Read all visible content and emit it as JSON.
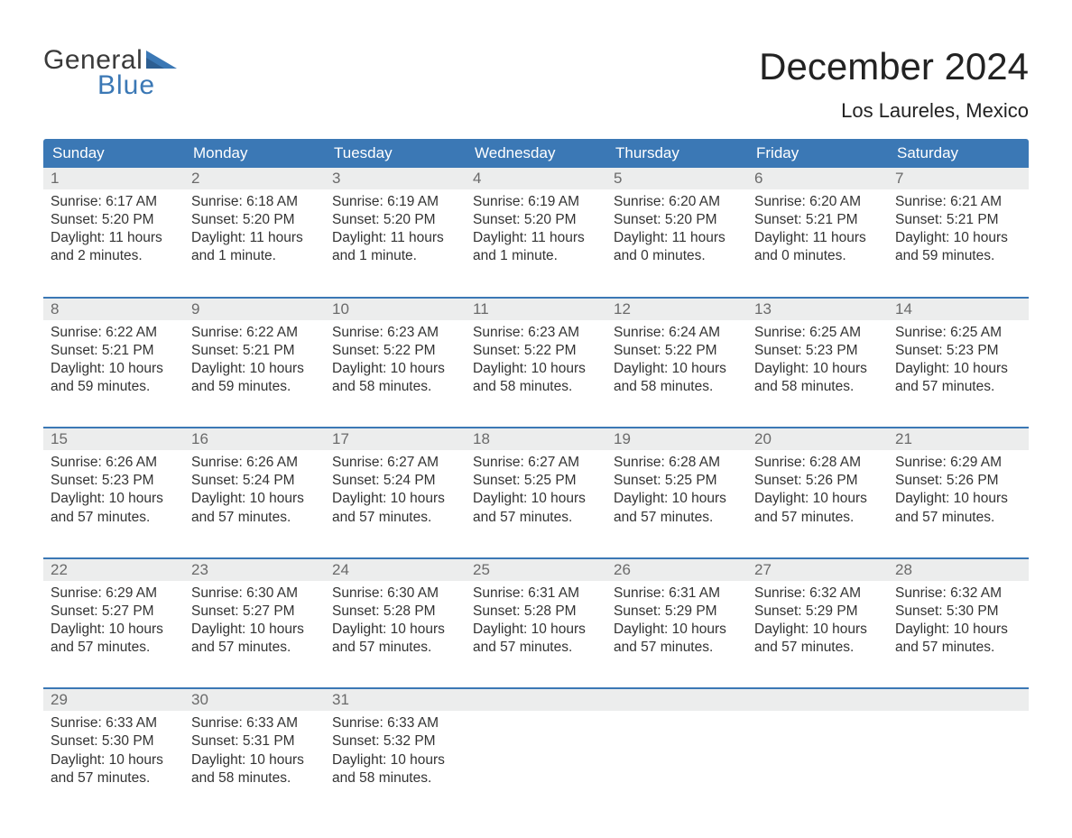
{
  "brand": {
    "word1": "General",
    "word2": "Blue",
    "logo_color": "#3b78b5",
    "text_color": "#3a3a3a"
  },
  "title": "December 2024",
  "location": "Los Laureles, Mexico",
  "colors": {
    "header_bg": "#3b78b5",
    "header_text": "#ffffff",
    "daynum_bg": "#eceded",
    "daynum_text": "#6a6a6a",
    "body_text": "#333333",
    "week_border": "#3b78b5",
    "page_bg": "#ffffff"
  },
  "typography": {
    "title_fontsize": 42,
    "location_fontsize": 22,
    "weekday_fontsize": 17,
    "daynum_fontsize": 17,
    "body_fontsize": 15.5,
    "logo_fontsize": 30
  },
  "weekdays": [
    "Sunday",
    "Monday",
    "Tuesday",
    "Wednesday",
    "Thursday",
    "Friday",
    "Saturday"
  ],
  "labels": {
    "sunrise": "Sunrise:",
    "sunset": "Sunset:",
    "daylight": "Daylight:"
  },
  "weeks": [
    [
      {
        "n": "1",
        "sunrise": "6:17 AM",
        "sunset": "5:20 PM",
        "daylight1": "11 hours",
        "daylight2": "and 2 minutes."
      },
      {
        "n": "2",
        "sunrise": "6:18 AM",
        "sunset": "5:20 PM",
        "daylight1": "11 hours",
        "daylight2": "and 1 minute."
      },
      {
        "n": "3",
        "sunrise": "6:19 AM",
        "sunset": "5:20 PM",
        "daylight1": "11 hours",
        "daylight2": "and 1 minute."
      },
      {
        "n": "4",
        "sunrise": "6:19 AM",
        "sunset": "5:20 PM",
        "daylight1": "11 hours",
        "daylight2": "and 1 minute."
      },
      {
        "n": "5",
        "sunrise": "6:20 AM",
        "sunset": "5:20 PM",
        "daylight1": "11 hours",
        "daylight2": "and 0 minutes."
      },
      {
        "n": "6",
        "sunrise": "6:20 AM",
        "sunset": "5:21 PM",
        "daylight1": "11 hours",
        "daylight2": "and 0 minutes."
      },
      {
        "n": "7",
        "sunrise": "6:21 AM",
        "sunset": "5:21 PM",
        "daylight1": "10 hours",
        "daylight2": "and 59 minutes."
      }
    ],
    [
      {
        "n": "8",
        "sunrise": "6:22 AM",
        "sunset": "5:21 PM",
        "daylight1": "10 hours",
        "daylight2": "and 59 minutes."
      },
      {
        "n": "9",
        "sunrise": "6:22 AM",
        "sunset": "5:21 PM",
        "daylight1": "10 hours",
        "daylight2": "and 59 minutes."
      },
      {
        "n": "10",
        "sunrise": "6:23 AM",
        "sunset": "5:22 PM",
        "daylight1": "10 hours",
        "daylight2": "and 58 minutes."
      },
      {
        "n": "11",
        "sunrise": "6:23 AM",
        "sunset": "5:22 PM",
        "daylight1": "10 hours",
        "daylight2": "and 58 minutes."
      },
      {
        "n": "12",
        "sunrise": "6:24 AM",
        "sunset": "5:22 PM",
        "daylight1": "10 hours",
        "daylight2": "and 58 minutes."
      },
      {
        "n": "13",
        "sunrise": "6:25 AM",
        "sunset": "5:23 PM",
        "daylight1": "10 hours",
        "daylight2": "and 58 minutes."
      },
      {
        "n": "14",
        "sunrise": "6:25 AM",
        "sunset": "5:23 PM",
        "daylight1": "10 hours",
        "daylight2": "and 57 minutes."
      }
    ],
    [
      {
        "n": "15",
        "sunrise": "6:26 AM",
        "sunset": "5:23 PM",
        "daylight1": "10 hours",
        "daylight2": "and 57 minutes."
      },
      {
        "n": "16",
        "sunrise": "6:26 AM",
        "sunset": "5:24 PM",
        "daylight1": "10 hours",
        "daylight2": "and 57 minutes."
      },
      {
        "n": "17",
        "sunrise": "6:27 AM",
        "sunset": "5:24 PM",
        "daylight1": "10 hours",
        "daylight2": "and 57 minutes."
      },
      {
        "n": "18",
        "sunrise": "6:27 AM",
        "sunset": "5:25 PM",
        "daylight1": "10 hours",
        "daylight2": "and 57 minutes."
      },
      {
        "n": "19",
        "sunrise": "6:28 AM",
        "sunset": "5:25 PM",
        "daylight1": "10 hours",
        "daylight2": "and 57 minutes."
      },
      {
        "n": "20",
        "sunrise": "6:28 AM",
        "sunset": "5:26 PM",
        "daylight1": "10 hours",
        "daylight2": "and 57 minutes."
      },
      {
        "n": "21",
        "sunrise": "6:29 AM",
        "sunset": "5:26 PM",
        "daylight1": "10 hours",
        "daylight2": "and 57 minutes."
      }
    ],
    [
      {
        "n": "22",
        "sunrise": "6:29 AM",
        "sunset": "5:27 PM",
        "daylight1": "10 hours",
        "daylight2": "and 57 minutes."
      },
      {
        "n": "23",
        "sunrise": "6:30 AM",
        "sunset": "5:27 PM",
        "daylight1": "10 hours",
        "daylight2": "and 57 minutes."
      },
      {
        "n": "24",
        "sunrise": "6:30 AM",
        "sunset": "5:28 PM",
        "daylight1": "10 hours",
        "daylight2": "and 57 minutes."
      },
      {
        "n": "25",
        "sunrise": "6:31 AM",
        "sunset": "5:28 PM",
        "daylight1": "10 hours",
        "daylight2": "and 57 minutes."
      },
      {
        "n": "26",
        "sunrise": "6:31 AM",
        "sunset": "5:29 PM",
        "daylight1": "10 hours",
        "daylight2": "and 57 minutes."
      },
      {
        "n": "27",
        "sunrise": "6:32 AM",
        "sunset": "5:29 PM",
        "daylight1": "10 hours",
        "daylight2": "and 57 minutes."
      },
      {
        "n": "28",
        "sunrise": "6:32 AM",
        "sunset": "5:30 PM",
        "daylight1": "10 hours",
        "daylight2": "and 57 minutes."
      }
    ],
    [
      {
        "n": "29",
        "sunrise": "6:33 AM",
        "sunset": "5:30 PM",
        "daylight1": "10 hours",
        "daylight2": "and 57 minutes."
      },
      {
        "n": "30",
        "sunrise": "6:33 AM",
        "sunset": "5:31 PM",
        "daylight1": "10 hours",
        "daylight2": "and 58 minutes."
      },
      {
        "n": "31",
        "sunrise": "6:33 AM",
        "sunset": "5:32 PM",
        "daylight1": "10 hours",
        "daylight2": "and 58 minutes."
      },
      null,
      null,
      null,
      null
    ]
  ]
}
